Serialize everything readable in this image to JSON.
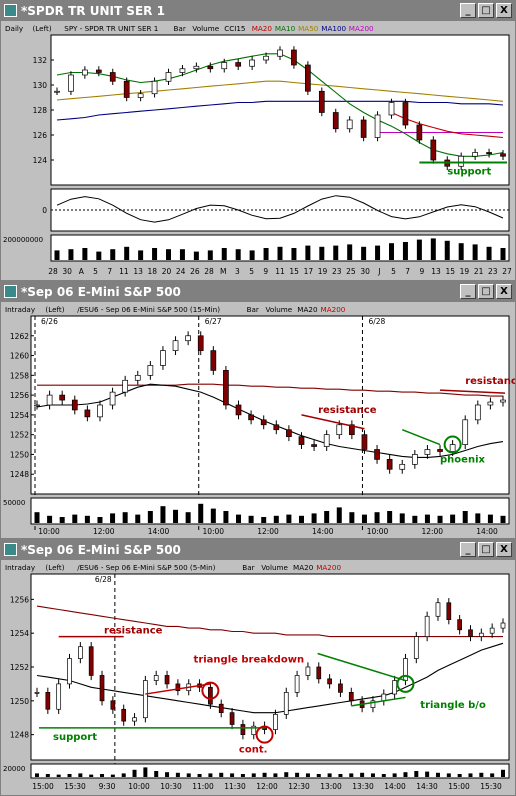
{
  "windows": [
    {
      "title": "*SPDR TR UNIT SER 1",
      "header": [
        "Daily",
        "(Left)",
        "SPY - SPDR TR UNIT SER 1",
        "Bar",
        "Volume",
        "CCI15",
        "MA20",
        "MA10",
        "MA50",
        "MA100",
        "MA200"
      ],
      "header_colors": [
        "#000",
        "#000",
        "#000",
        "#000",
        "#000",
        "#000",
        "#c00000",
        "#007000",
        "#a08000",
        "#000080",
        "#c000c0"
      ]
    },
    {
      "title": "*Sep 06  E-Mini S&P 500",
      "header": [
        "Intraday",
        "(Left)",
        "/ESU6 - Sep 06 E-Mini S&P 500 (15-Min)",
        "Bar",
        "Volume",
        "MA20",
        "MA200"
      ],
      "header_colors": [
        "#000",
        "#000",
        "#000",
        "#000",
        "#000",
        "#000",
        "#c00000"
      ]
    },
    {
      "title": "*Sep 06  E-Mini S&P 500",
      "header": [
        "Intraday",
        "(Left)",
        "/ESU6 - Sep 06 E-Mini S&P 500 (5-Min)",
        "Bar",
        "Volume",
        "MA20",
        "MA200"
      ],
      "header_colors": [
        "#000",
        "#000",
        "#000",
        "#000",
        "#000",
        "#000",
        "#c00000"
      ]
    }
  ],
  "buttons": {
    "minimize": "_",
    "maximize": "□",
    "close": "X"
  },
  "chart_data": [
    {
      "type": "line",
      "title": "SPY - SPDR TR UNIT SER 1",
      "ylim": [
        122,
        134
      ],
      "yticks": [
        124,
        126,
        128,
        130,
        132
      ],
      "xticks": [
        "28",
        "30",
        "A",
        "5",
        "7",
        "11",
        "13",
        "18",
        "20",
        "24",
        "26",
        "28",
        "M",
        "3",
        "5",
        "9",
        "11",
        "15",
        "17",
        "19",
        "23",
        "25",
        "30",
        "J",
        "5",
        "7",
        "9",
        "13",
        "15",
        "19",
        "21",
        "23",
        "27"
      ],
      "series": [
        {
          "name": "MA10",
          "color": "#007000",
          "values": [
            130.8,
            131.0,
            131.0,
            130.9,
            130.7,
            130.4,
            130.2,
            130.3,
            130.5,
            130.8,
            131.2,
            131.6,
            131.9,
            132.1,
            132.3,
            132.5,
            132.5,
            132.0,
            131.2,
            130.3,
            129.4,
            128.5,
            127.8,
            127.2,
            126.7,
            126.1,
            125.4,
            124.8,
            124.5,
            124.3,
            124.3,
            124.4,
            124.6
          ]
        },
        {
          "name": "MA50",
          "color": "#a08000",
          "values": [
            128.8,
            128.9,
            129.0,
            129.1,
            129.2,
            129.3,
            129.4,
            129.5,
            129.6,
            129.7,
            129.8,
            129.9,
            130.0,
            130.1,
            130.2,
            130.3,
            130.3,
            130.2,
            130.1,
            130.0,
            129.9,
            129.8,
            129.7,
            129.6,
            129.5,
            129.4,
            129.3,
            129.2,
            129.1,
            129.0,
            128.9,
            128.8,
            128.7
          ]
        },
        {
          "name": "MA100",
          "color": "#000080",
          "values": [
            127.2,
            127.3,
            127.4,
            127.6,
            127.7,
            127.8,
            127.9,
            128.0,
            128.1,
            128.2,
            128.3,
            128.4,
            128.5,
            128.6,
            128.6,
            128.7,
            128.7,
            128.7,
            128.7,
            128.7,
            128.7,
            128.7,
            128.7,
            128.7,
            128.7,
            128.7,
            128.6,
            128.6,
            128.6,
            128.5,
            128.5,
            128.5,
            128.4
          ]
        },
        {
          "name": "MA20",
          "color": "#c00000",
          "values": [
            null,
            null,
            null,
            null,
            null,
            null,
            null,
            null,
            null,
            null,
            null,
            null,
            null,
            null,
            null,
            null,
            null,
            null,
            null,
            null,
            null,
            null,
            null,
            null,
            127.8,
            127.3,
            126.9,
            126.6,
            126.3,
            126.1,
            126.0,
            125.9,
            125.8
          ]
        },
        {
          "name": "MA200",
          "color": "#c000c0",
          "values": [
            null,
            null,
            null,
            null,
            null,
            null,
            null,
            null,
            null,
            null,
            null,
            null,
            null,
            null,
            null,
            null,
            null,
            null,
            null,
            null,
            null,
            null,
            null,
            126.2,
            126.2,
            126.2,
            126.2,
            126.2,
            126.2,
            126.2,
            126.2,
            126.2,
            126.2
          ]
        }
      ],
      "close": [
        129.5,
        130.8,
        131.2,
        131.0,
        130.3,
        129.0,
        129.3,
        130.3,
        131.0,
        131.3,
        131.5,
        131.3,
        131.8,
        131.5,
        132.0,
        132.3,
        132.8,
        131.6,
        129.5,
        127.8,
        126.5,
        127.2,
        125.8,
        127.6,
        128.6,
        126.8,
        125.6,
        124.0,
        123.5,
        124.3,
        124.6,
        124.5,
        124.3
      ],
      "annotations": [
        {
          "text": "support",
          "color": "#008000"
        }
      ],
      "cci_label": "0",
      "volume_label": "200000000",
      "volume": [
        0.4,
        0.45,
        0.5,
        0.35,
        0.45,
        0.55,
        0.4,
        0.5,
        0.45,
        0.45,
        0.35,
        0.4,
        0.5,
        0.45,
        0.4,
        0.5,
        0.55,
        0.5,
        0.6,
        0.55,
        0.6,
        0.65,
        0.55,
        0.6,
        0.7,
        0.75,
        0.85,
        0.9,
        0.8,
        0.7,
        0.65,
        0.55,
        0.5
      ]
    },
    {
      "type": "line",
      "title": "/ESU6 - Sep 06 E-Mini S&P 500 (15-Min)",
      "ylim": [
        1246,
        1264
      ],
      "yticks": [
        1248,
        1250,
        1252,
        1254,
        1256,
        1258,
        1260,
        1262
      ],
      "xticks": [
        "10:00",
        "12:00",
        "14:00",
        "10:00",
        "12:00",
        "14:00",
        "10:00",
        "12:00",
        "14:00"
      ],
      "session_labels": [
        "6/26",
        "6/27",
        "6/28"
      ],
      "close": [
        1255.0,
        1256.0,
        1255.5,
        1254.5,
        1253.8,
        1255.0,
        1256.3,
        1257.5,
        1258.0,
        1259.0,
        1260.5,
        1261.5,
        1262.0,
        1260.5,
        1258.5,
        1255.0,
        1254.0,
        1253.5,
        1253.0,
        1252.5,
        1251.8,
        1251.0,
        1250.8,
        1252.0,
        1253.0,
        1252.0,
        1250.5,
        1249.5,
        1248.5,
        1249.0,
        1250.0,
        1250.5,
        1250.3,
        1251.0,
        1253.5,
        1255.0,
        1255.3,
        1255.5
      ],
      "ma20": [
        1254.8,
        1255.0,
        1255.0,
        1255.0,
        1255.1,
        1255.3,
        1255.8,
        1256.3,
        1256.8,
        1257.1,
        1257.0,
        1256.9,
        1256.6,
        1256.3,
        1255.8,
        1255.2,
        1254.6,
        1254.0,
        1253.4,
        1252.9,
        1252.4,
        1251.9,
        1251.5,
        1251.1,
        1250.8,
        1250.6,
        1250.4,
        1250.2,
        1250.0,
        1249.8,
        1249.7,
        1249.7,
        1249.8,
        1250.0,
        1250.4,
        1250.8,
        1251.1,
        1251.3
      ],
      "ma200": [
        1257.0,
        1257.0,
        1257.0,
        1257.0,
        1257.0,
        1257.0,
        1257.0,
        1257.0,
        1257.0,
        1257.0,
        1257.0,
        1257.0,
        1257.1,
        1257.1,
        1257.1,
        1257.0,
        1257.0,
        1256.9,
        1256.9,
        1256.8,
        1256.8,
        1256.7,
        1256.7,
        1256.6,
        1256.6,
        1256.5,
        1256.5,
        1256.4,
        1256.4,
        1256.3,
        1256.3,
        1256.2,
        1256.2,
        1256.1,
        1256.0,
        1256.0,
        1255.9,
        1255.9
      ],
      "annotations": [
        {
          "text": "resistance",
          "color": "#a00000"
        },
        {
          "text": "resistance",
          "color": "#a00000"
        },
        {
          "text": "phoenix",
          "color": "#008000"
        }
      ],
      "volume_label": "50000",
      "volume": [
        0.45,
        0.3,
        0.25,
        0.35,
        0.3,
        0.25,
        0.4,
        0.45,
        0.35,
        0.5,
        0.7,
        0.55,
        0.45,
        0.8,
        0.6,
        0.5,
        0.35,
        0.3,
        0.25,
        0.3,
        0.35,
        0.3,
        0.4,
        0.5,
        0.65,
        0.45,
        0.35,
        0.45,
        0.5,
        0.4,
        0.3,
        0.35,
        0.3,
        0.35,
        0.5,
        0.4,
        0.35,
        0.3
      ]
    },
    {
      "type": "line",
      "title": "/ESU6 - Sep 06 E-Mini S&P 500 (5-Min)",
      "ylim": [
        1246.5,
        1257.5
      ],
      "yticks": [
        1248,
        1250,
        1252,
        1254,
        1256
      ],
      "xticks": [
        "15:00",
        "15:30",
        "9:30",
        "10:00",
        "10:30",
        "11:00",
        "11:30",
        "12:00",
        "12:30",
        "13:00",
        "13:30",
        "14:00",
        "14:30",
        "15:00",
        "15:30"
      ],
      "session_labels": [
        "6/28"
      ],
      "close": [
        1250.5,
        1249.5,
        1251.0,
        1252.5,
        1253.2,
        1251.5,
        1250.0,
        1249.5,
        1248.8,
        1249.0,
        1251.2,
        1251.5,
        1251.0,
        1250.6,
        1251.0,
        1250.8,
        1249.8,
        1249.3,
        1248.6,
        1248.0,
        1248.5,
        1248.3,
        1249.2,
        1250.5,
        1251.5,
        1252.0,
        1251.3,
        1251.0,
        1250.5,
        1250.0,
        1249.6,
        1250.0,
        1250.4,
        1251.2,
        1252.5,
        1253.8,
        1255.0,
        1255.8,
        1254.8,
        1254.2,
        1253.8,
        1254.0,
        1254.3,
        1254.6
      ],
      "ma20": [
        1251.5,
        1251.4,
        1251.3,
        1251.2,
        1251.0,
        1250.8,
        1250.7,
        1250.6,
        1250.5,
        1250.4,
        1250.3,
        1250.2,
        1250.1,
        1250.0,
        1249.9,
        1249.8,
        1249.7,
        1249.6,
        1249.5,
        1249.4,
        1249.3,
        1249.3,
        1249.3,
        1249.4,
        1249.5,
        1249.6,
        1249.7,
        1249.8,
        1249.9,
        1250.0,
        1250.1,
        1250.2,
        1250.3,
        1250.5,
        1250.8,
        1251.1,
        1251.4,
        1251.8,
        1252.1,
        1252.4,
        1252.7,
        1253.0,
        1253.2,
        1253.4
      ],
      "ma200": [
        1255.6,
        1255.5,
        1255.4,
        1255.3,
        1255.2,
        1255.1,
        1255.0,
        1254.9,
        1254.8,
        1254.7,
        1254.6,
        1254.5,
        1254.4,
        1254.4,
        1254.3,
        1254.3,
        1254.2,
        1254.2,
        1254.1,
        1254.1,
        1254.0,
        1254.0,
        1254.0,
        1253.9,
        1253.9,
        1253.9,
        1253.9,
        1253.8,
        1253.8,
        1253.8,
        1253.8,
        1253.8,
        1253.8,
        1253.8,
        1253.8,
        1253.8,
        1253.8,
        1253.8,
        1253.8,
        1253.8,
        1253.8,
        1253.8,
        1253.8,
        1253.8
      ],
      "annotations": [
        {
          "text": "resistance",
          "color": "#a00000"
        },
        {
          "text": "triangle breakdown",
          "color": "#c00000"
        },
        {
          "text": "support",
          "color": "#008000"
        },
        {
          "text": "cont.",
          "color": "#c00000"
        },
        {
          "text": "triangle b/o",
          "color": "#008000"
        }
      ],
      "volume_label": "20000",
      "volume": [
        0.3,
        0.25,
        0.2,
        0.25,
        0.3,
        0.2,
        0.25,
        0.2,
        0.3,
        0.6,
        0.8,
        0.5,
        0.4,
        0.35,
        0.3,
        0.25,
        0.3,
        0.35,
        0.3,
        0.25,
        0.3,
        0.35,
        0.3,
        0.4,
        0.35,
        0.3,
        0.25,
        0.3,
        0.25,
        0.3,
        0.35,
        0.3,
        0.25,
        0.3,
        0.4,
        0.5,
        0.45,
        0.35,
        0.3,
        0.25,
        0.3,
        0.35,
        0.3,
        0.6
      ]
    }
  ]
}
